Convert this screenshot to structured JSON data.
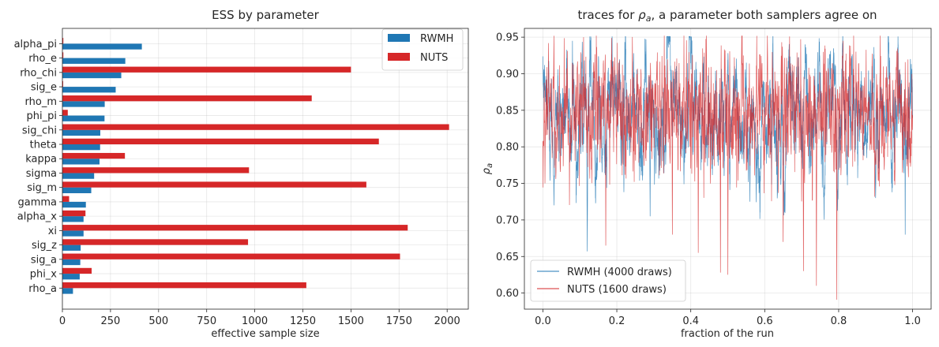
{
  "chart_data": [
    {
      "type": "bar",
      "orientation": "horizontal",
      "title": "ESS by parameter",
      "xlabel": "effective sample size",
      "ylabel": "",
      "xlim": [
        0,
        2110
      ],
      "xticks": [
        0,
        250,
        500,
        750,
        1000,
        1250,
        1500,
        1750,
        2000
      ],
      "categories": [
        "alpha_pi",
        "rho_e",
        "rho_chi",
        "sig_e",
        "rho_m",
        "phi_pi",
        "sig_chi",
        "theta",
        "kappa",
        "sigma",
        "sig_m",
        "gamma",
        "alpha_x",
        "xi",
        "sig_z",
        "sig_a",
        "phi_x",
        "rho_a"
      ],
      "series": [
        {
          "name": "RWMH",
          "color": "#1f77b4",
          "values": [
            413,
            327,
            306,
            277,
            220,
            219,
            197,
            196,
            193,
            165,
            150,
            122,
            110,
            110,
            95,
            93,
            90,
            55
          ]
        },
        {
          "name": "NUTS",
          "color": "#d62728",
          "values": [
            5,
            5,
            1500,
            4,
            1296,
            28,
            2010,
            1645,
            325,
            970,
            1580,
            35,
            120,
            1795,
            965,
            1755,
            152,
            1268
          ]
        }
      ],
      "grid": true,
      "legend": "upper right"
    },
    {
      "type": "line",
      "title": "traces for $\\rho_a$, a parameter both samplers agree on",
      "title_prefix": "traces for ",
      "title_symbol": "ρ",
      "title_sub": "a",
      "title_suffix": ", a parameter both samplers agree on",
      "xlabel": "fraction of the run",
      "ylabel_symbol": "ρ",
      "ylabel_sub": "a",
      "xlim": [
        -0.05,
        1.05
      ],
      "ylim": [
        0.578,
        0.962
      ],
      "xticks": [
        0.0,
        0.2,
        0.4,
        0.6,
        0.8,
        1.0
      ],
      "xtick_labels": [
        "0.0",
        "0.2",
        "0.4",
        "0.6",
        "0.8",
        "1.0"
      ],
      "yticks": [
        0.6,
        0.65,
        0.7,
        0.75,
        0.8,
        0.85,
        0.9,
        0.95
      ],
      "ytick_labels": [
        "0.60",
        "0.65",
        "0.70",
        "0.75",
        "0.80",
        "0.85",
        "0.90",
        "0.95"
      ],
      "series": [
        {
          "name": "RWMH (4000 draws)",
          "color": "#1f77b4",
          "draws": 4000,
          "mean": 0.848,
          "sd": 0.045,
          "min": 0.657,
          "max": 0.951,
          "start": 0.88
        },
        {
          "name": "NUTS (1600 draws)",
          "color": "#d62728",
          "draws": 1600,
          "mean": 0.848,
          "sd": 0.043,
          "min": 0.591,
          "max": 0.952,
          "start": 0.82
        }
      ],
      "grid": true,
      "legend": "lower left"
    }
  ]
}
